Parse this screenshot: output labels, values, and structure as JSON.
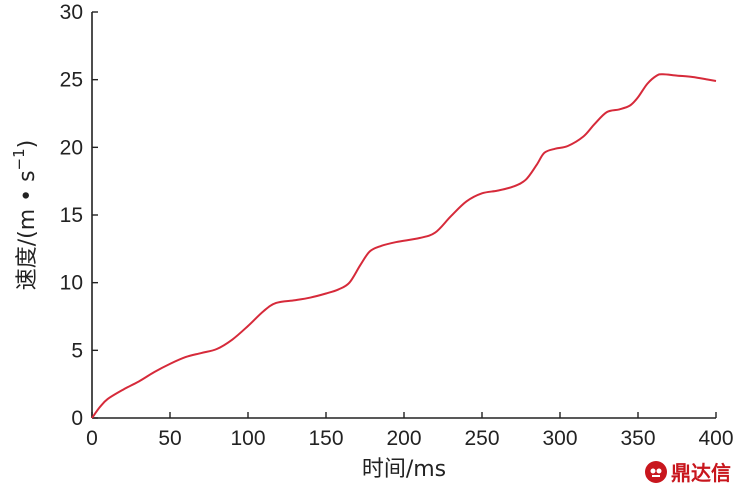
{
  "chart_data": {
    "type": "line",
    "xlabel": "时间/ms",
    "ylabel": "速度/(m • s",
    "ylabel_superscript": "−1",
    "ylabel_close": ")",
    "xlim": [
      0,
      400
    ],
    "ylim": [
      0,
      30
    ],
    "xticks": [
      "0",
      "50",
      "100",
      "150",
      "200",
      "250",
      "300",
      "350",
      "400"
    ],
    "yticks": [
      "0",
      "5",
      "10",
      "15",
      "20",
      "25",
      "30"
    ],
    "grid": false,
    "series": [
      {
        "color": "#d62a3a",
        "points": [
          [
            0,
            0
          ],
          [
            5,
            0.8
          ],
          [
            10,
            1.4
          ],
          [
            20,
            2.1
          ],
          [
            30,
            2.7
          ],
          [
            40,
            3.4
          ],
          [
            50,
            4.0
          ],
          [
            60,
            4.5
          ],
          [
            70,
            4.8
          ],
          [
            80,
            5.1
          ],
          [
            90,
            5.8
          ],
          [
            100,
            6.8
          ],
          [
            110,
            7.9
          ],
          [
            118,
            8.5
          ],
          [
            130,
            8.7
          ],
          [
            140,
            8.9
          ],
          [
            150,
            9.2
          ],
          [
            158,
            9.5
          ],
          [
            165,
            10.0
          ],
          [
            172,
            11.3
          ],
          [
            178,
            12.3
          ],
          [
            185,
            12.7
          ],
          [
            195,
            13.0
          ],
          [
            210,
            13.3
          ],
          [
            220,
            13.7
          ],
          [
            230,
            14.9
          ],
          [
            240,
            16.0
          ],
          [
            250,
            16.6
          ],
          [
            260,
            16.8
          ],
          [
            270,
            17.1
          ],
          [
            278,
            17.6
          ],
          [
            285,
            18.7
          ],
          [
            290,
            19.6
          ],
          [
            297,
            19.9
          ],
          [
            305,
            20.1
          ],
          [
            315,
            20.8
          ],
          [
            322,
            21.7
          ],
          [
            330,
            22.6
          ],
          [
            338,
            22.8
          ],
          [
            345,
            23.1
          ],
          [
            350,
            23.7
          ],
          [
            356,
            24.7
          ],
          [
            362,
            25.3
          ],
          [
            366,
            25.4
          ],
          [
            375,
            25.3
          ],
          [
            385,
            25.2
          ],
          [
            395,
            25.0
          ],
          [
            400,
            24.9
          ]
        ]
      }
    ]
  },
  "watermark": {
    "text": "鼎达信",
    "color": "#c8161d"
  }
}
